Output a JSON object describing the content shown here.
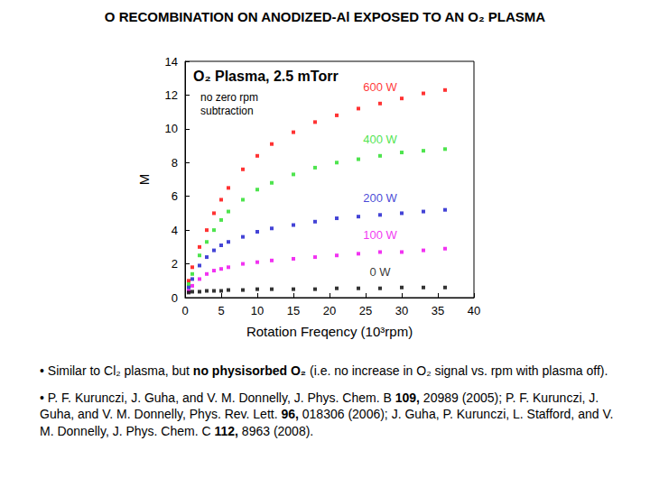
{
  "chart_data": {
    "type": "scatter",
    "title": "O RECOMBINATION ON ANODIZED-Al EXPOSED TO AN O₂ PLASMA",
    "annotations": [
      "O₂ Plasma, 2.5 mTorr",
      "no zero rpm subtraction"
    ],
    "xlabel": "Rotation Freqency (10³rpm)",
    "ylabel": "M",
    "xlim": [
      0,
      40
    ],
    "xticks": [
      0,
      5,
      10,
      15,
      20,
      25,
      30,
      35,
      40
    ],
    "ylim": [
      0,
      14
    ],
    "yticks": [
      0,
      2,
      4,
      6,
      8,
      10,
      12,
      14
    ],
    "marker": "square",
    "x": [
      0.5,
      1,
      2,
      3,
      4,
      5,
      6,
      8,
      10,
      12,
      15,
      18,
      21,
      24,
      27,
      30,
      33,
      36
    ],
    "series": [
      {
        "name": "600 W",
        "color": "#ff0000",
        "values": [
          1.0,
          1.8,
          3.0,
          4.0,
          5.0,
          5.8,
          6.5,
          7.6,
          8.4,
          9.1,
          9.8,
          10.4,
          10.8,
          11.2,
          11.5,
          11.8,
          12.1,
          12.3
        ]
      },
      {
        "name": "400 W",
        "color": "#22dd22",
        "values": [
          0.8,
          1.4,
          2.5,
          3.3,
          4.0,
          4.6,
          5.1,
          5.8,
          6.4,
          6.8,
          7.3,
          7.7,
          8.0,
          8.2,
          8.4,
          8.6,
          8.7,
          8.8
        ]
      },
      {
        "name": "200 W",
        "color": "#1515cc",
        "values": [
          0.6,
          1.1,
          1.9,
          2.4,
          2.8,
          3.1,
          3.3,
          3.6,
          3.9,
          4.1,
          4.3,
          4.5,
          4.7,
          4.8,
          4.9,
          5.0,
          5.1,
          5.2
        ]
      },
      {
        "name": "100 W",
        "color": "#ee00ee",
        "values": [
          0.4,
          0.7,
          1.1,
          1.4,
          1.6,
          1.7,
          1.8,
          2.0,
          2.1,
          2.2,
          2.3,
          2.4,
          2.5,
          2.6,
          2.7,
          2.7,
          2.8,
          2.9
        ]
      },
      {
        "name": "0 W",
        "color": "#000000",
        "values": [
          0.3,
          0.35,
          0.35,
          0.4,
          0.4,
          0.4,
          0.45,
          0.45,
          0.5,
          0.5,
          0.5,
          0.5,
          0.55,
          0.55,
          0.55,
          0.6,
          0.6,
          0.6
        ]
      }
    ]
  },
  "notes": [
    [
      {
        "text": "• Similar to Cl₂ plasma, but ",
        "bold": false
      },
      {
        "text": "no physisorbed O₂",
        "bold": true
      },
      {
        "text": " (i.e. no increase in O₂ signal vs. rpm with plasma off).",
        "bold": false
      }
    ],
    [
      {
        "text": "• P. F. Kurunczi, J. Guha, and V. M. Donnelly, J. Phys. Chem. B ",
        "bold": false
      },
      {
        "text": "109,",
        "bold": true
      },
      {
        "text": " 20989 (2005); P. F. Kurunczi, J. Guha, and V. M. Donnelly, Phys. Rev. Lett. ",
        "bold": false
      },
      {
        "text": "96,",
        "bold": true
      },
      {
        "text": " 018306 (2006); J. Guha, P. Kurunczi, L. Stafford, and V. M. Donnelly, J. Phys. Chem. C ",
        "bold": false
      },
      {
        "text": "112,",
        "bold": true
      },
      {
        "text": " 8963 (2008).",
        "bold": false
      }
    ]
  ]
}
